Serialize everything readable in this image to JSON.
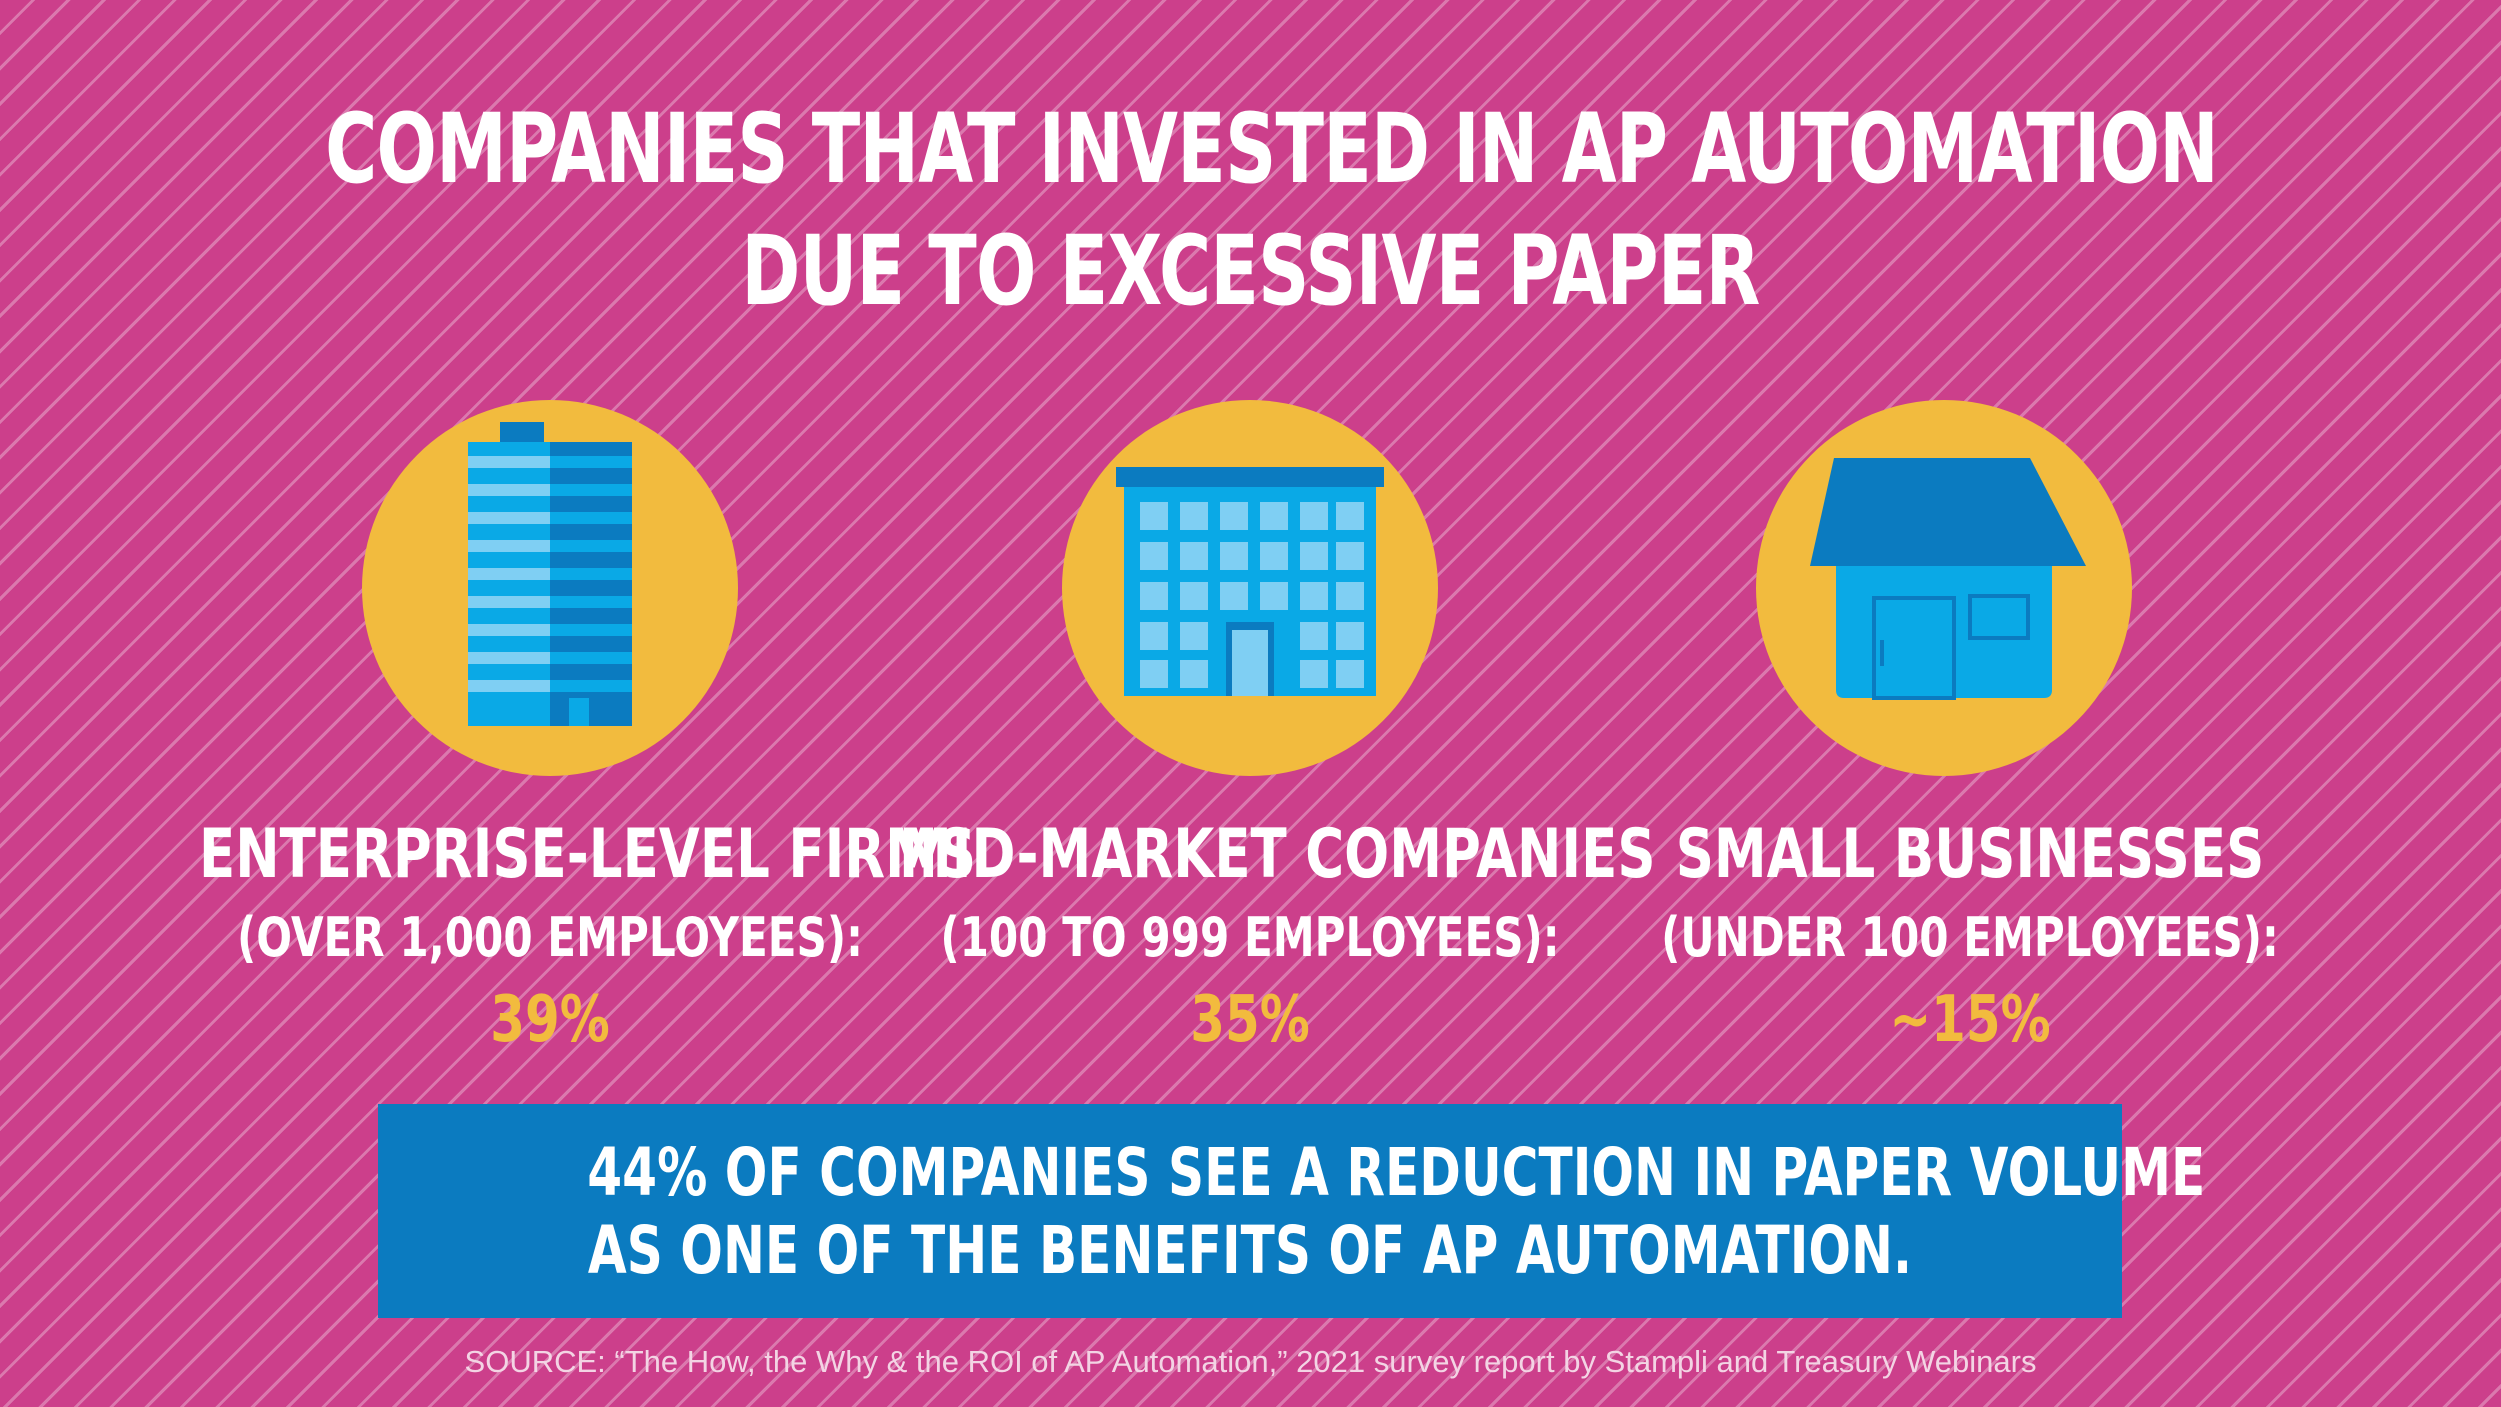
{
  "title": {
    "line1": "COMPANIES THAT INVESTED IN AP AUTOMATION",
    "line2": "DUE TO EXCESSIVE PAPER"
  },
  "colors": {
    "background": "#cc3f8b",
    "circle": "#f2bb3e",
    "banner": "#0b7bc0",
    "building_light": "#0aa9e6",
    "building_dark": "#0b7bc0",
    "window_light": "#7fcff3"
  },
  "segments": [
    {
      "icon": "skyscraper-icon",
      "heading": "ENTERPRISE-LEVEL FIRMS",
      "subheading": "(OVER 1,000 EMPLOYEES):",
      "value": "39%"
    },
    {
      "icon": "office-building-icon",
      "heading": "MID-MARKET COMPANIES",
      "subheading": "(100 TO 999 EMPLOYEES):",
      "value": "35%"
    },
    {
      "icon": "house-icon",
      "heading": "SMALL BUSINESSES",
      "subheading": "(UNDER 100 EMPLOYEES):",
      "value": "~15%"
    }
  ],
  "banner": {
    "line1": "44% OF COMPANIES SEE A REDUCTION IN PAPER VOLUME",
    "line2": "AS ONE OF THE BENEFITS OF AP AUTOMATION."
  },
  "source": "SOURCE: “The How, the Why & the ROI of AP Automation,” 2021 survey report by Stampli and Treasury Webinars"
}
